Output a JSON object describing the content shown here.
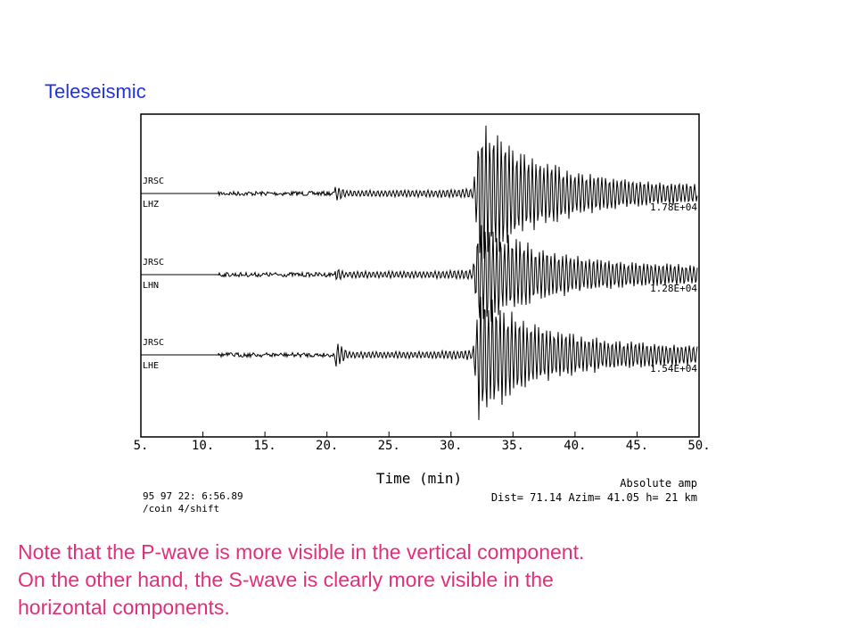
{
  "title": "Teleseismic",
  "figure": {
    "traces": [
      {
        "station": "JRSC",
        "channel": "LHZ",
        "amplitude": "1.78E+04"
      },
      {
        "station": "JRSC",
        "channel": "LHN",
        "amplitude": "1.28E+04"
      },
      {
        "station": "JRSC",
        "channel": "LHE",
        "amplitude": "1.54E+04"
      }
    ],
    "x_ticks": [
      "5.",
      "10.",
      "15.",
      "20.",
      "25.",
      "30.",
      "35.",
      "40.",
      "45.",
      "50."
    ],
    "x_label": "Time  (min)",
    "scale_note": "Absolute amp",
    "footer_left": [
      "95   97 22: 6:56.89",
      "/coin 4/shift"
    ],
    "footer_right": "Dist= 71.14  Azim= 41.05  h= 21  km"
  },
  "note": [
    "Note that the P-wave is more visible in the vertical component.",
    "On the other hand, the S-wave is clearly more visible in the",
    "horizontal components."
  ]
}
